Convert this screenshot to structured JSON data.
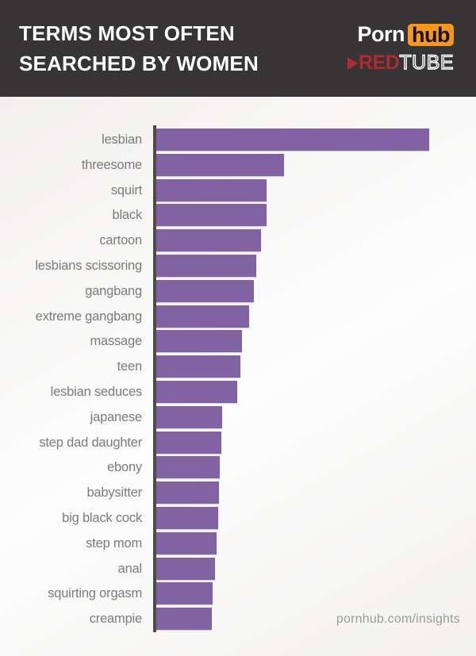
{
  "header": {
    "title_line1": "TERMS MOST OFTEN",
    "title_line2": "SEARCHED BY WOMEN",
    "pornhub_logo": {
      "part1": "Porn",
      "part2": "hub"
    },
    "redtube_logo": {
      "play_icon": "play-triangle",
      "part1": "RED",
      "part2": "TUBE"
    }
  },
  "footer": {
    "source": "pornhub.com/insights"
  },
  "colors": {
    "header_bg": "#363434",
    "bar": "#8162a2",
    "axis": "#4e4b49",
    "label": "#7b7b7b",
    "pornhub_orange": "#f7971c",
    "redtube_red": "#b02a30",
    "footer_text": "#9b9b9b"
  },
  "chart_data": {
    "type": "bar",
    "orientation": "horizontal",
    "title": "Terms most often searched by women",
    "categories": [
      "lesbian",
      "threesome",
      "squirt",
      "black",
      "cartoon",
      "lesbians scissoring",
      "gangbang",
      "extreme gangbang",
      "massage",
      "teen",
      "lesbian seduces",
      "japanese",
      "step dad daughter",
      "ebony",
      "babysitter",
      "big black cock",
      "step mom",
      "anal",
      "squirting orgasm",
      "creampie"
    ],
    "values": [
      100,
      46.9,
      40.6,
      40.4,
      38.4,
      36.8,
      36.0,
      34.1,
      31.4,
      30.9,
      29.7,
      24.2,
      24.0,
      23.5,
      23.0,
      22.8,
      22.2,
      21.7,
      20.8,
      20.6
    ],
    "value_unit": "relative search frequency (top term = 100)",
    "xlim": [
      0,
      100
    ],
    "grid": false,
    "legend": false,
    "bar_color": "#8162a2"
  }
}
